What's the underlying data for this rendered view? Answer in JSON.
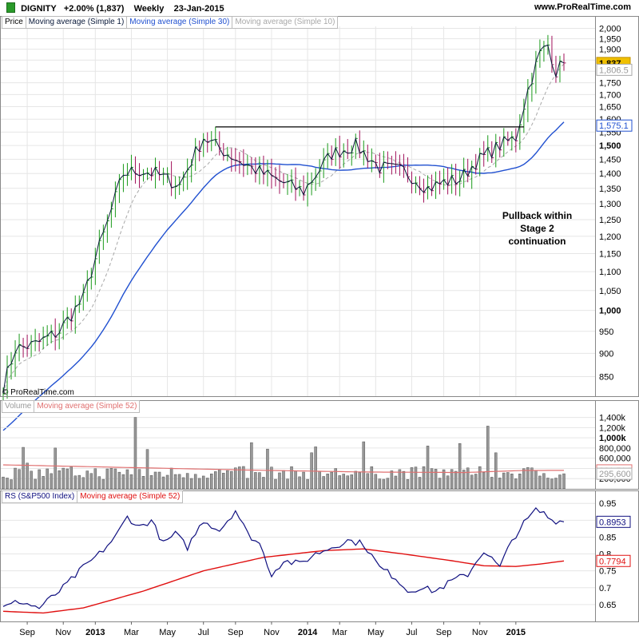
{
  "header": {
    "symbol": "DIGNITY",
    "change": "+2.00% (1,837)",
    "period": "Weekly",
    "date": "23-Jan-2015",
    "source": "www.ProRealTime.com"
  },
  "copyright": "© ProRealTime.com",
  "annotation": [
    "Pullback within",
    "Stage 2",
    "continuation"
  ],
  "price_legend": [
    "Price",
    "Moving average (Simple 1)",
    "Moving average (Simple 30)",
    "Moving average (Simple 10)"
  ],
  "volume_legend": [
    "Volume",
    "Moving average (Simple 52)"
  ],
  "rs_legend": [
    "RS (S&P500 Index)",
    "Moving average (Simple 52)"
  ],
  "colors": {
    "up": "#1a9a1a",
    "down": "#a0105a",
    "ma1": "#0a1a3a",
    "ma30": "#2050d0",
    "ma10": "#a8a8a8",
    "rs": "#101080",
    "rs_ma": "#e01010",
    "vol_ma": "#e07070",
    "grid": "#e6e6e6",
    "badge_price": "#f0c000"
  },
  "chart_data": [
    {
      "type": "candlestick",
      "title": "Price",
      "ylim": [
        810,
        2010
      ],
      "log_scale": true,
      "y_ticks": [
        "850",
        "900",
        "950",
        "1,000",
        "1,050",
        "1,100",
        "1,150",
        "1,200",
        "1,250",
        "1,300",
        "1,350",
        "1,400",
        "1,450",
        "1,500",
        "1,550",
        "1,600",
        "1,650",
        "1,700",
        "1,750",
        "1,800",
        "1,850",
        "1,900",
        "1,950",
        "2,000"
      ],
      "y_ticks_bold": [
        "1,000",
        "1,500"
      ],
      "x_ticks": [
        "Sep",
        "Nov",
        "2013",
        "Mar",
        "May",
        "Jul",
        "Sep",
        "Nov",
        "2014",
        "Mar",
        "May",
        "Jul",
        "Sep",
        "Nov",
        "2015"
      ],
      "x_ticks_bold": [
        "2013",
        "2014",
        "2015"
      ],
      "close_anchors": [
        [
          0,
          830
        ],
        [
          3,
          910
        ],
        [
          8,
          920
        ],
        [
          14,
          950
        ],
        [
          20,
          1030
        ],
        [
          26,
          1240
        ],
        [
          30,
          1400
        ],
        [
          34,
          1410
        ],
        [
          38,
          1400
        ],
        [
          44,
          1360
        ],
        [
          50,
          1530
        ],
        [
          56,
          1470
        ],
        [
          62,
          1420
        ],
        [
          68,
          1380
        ],
        [
          75,
          1340
        ],
        [
          82,
          1470
        ],
        [
          88,
          1500
        ],
        [
          94,
          1420
        ],
        [
          100,
          1410
        ],
        [
          106,
          1350
        ],
        [
          110,
          1370
        ],
        [
          114,
          1380
        ],
        [
          118,
          1440
        ],
        [
          124,
          1500
        ],
        [
          128,
          1530
        ],
        [
          131,
          1720
        ],
        [
          134,
          1880
        ],
        [
          136,
          1920
        ],
        [
          138,
          1800
        ],
        [
          140,
          1837
        ]
      ],
      "price_labels": [
        {
          "text": "1,837",
          "value": 1837,
          "style": "badge"
        },
        {
          "text": "1,806.5",
          "value": 1806.5,
          "style": "gray"
        },
        {
          "text": "1,575.1",
          "value": 1575.1,
          "style": "blue"
        }
      ],
      "resistance": {
        "value": 1570,
        "from_week": 53,
        "to_week": 130
      },
      "ma_periods": [
        1,
        30,
        10
      ]
    },
    {
      "type": "bar",
      "title": "Volume",
      "ylim": [
        0,
        1550000
      ],
      "y_ticks": [
        "200,000",
        "400,000",
        "600,000",
        "800,000",
        "1,000k",
        "1,200k",
        "1,400k"
      ],
      "y_ticks_bold": [
        "1,000k"
      ],
      "value_labels": [
        {
          "text": "361,514",
          "value": 361514
        },
        {
          "text": "295,600",
          "value": 295600
        }
      ],
      "ma_period": 52
    },
    {
      "type": "line",
      "title": "RS (S&P500 Index)",
      "ylim": [
        0.6,
        0.96
      ],
      "y_ticks": [
        "0.65",
        "0.7",
        "0.75",
        "0.8",
        "0.85",
        "0.9",
        "0.95"
      ],
      "rs_anchors": [
        [
          0,
          0.64
        ],
        [
          4,
          0.66
        ],
        [
          9,
          0.64
        ],
        [
          15,
          0.7
        ],
        [
          20,
          0.76
        ],
        [
          24,
          0.8
        ],
        [
          28,
          0.85
        ],
        [
          31,
          0.91
        ],
        [
          34,
          0.88
        ],
        [
          37,
          0.9
        ],
        [
          40,
          0.83
        ],
        [
          43,
          0.86
        ],
        [
          46,
          0.82
        ],
        [
          50,
          0.9
        ],
        [
          54,
          0.87
        ],
        [
          58,
          0.93
        ],
        [
          61,
          0.86
        ],
        [
          64,
          0.83
        ],
        [
          67,
          0.74
        ],
        [
          70,
          0.78
        ],
        [
          74,
          0.77
        ],
        [
          78,
          0.8
        ],
        [
          82,
          0.82
        ],
        [
          86,
          0.84
        ],
        [
          90,
          0.83
        ],
        [
          94,
          0.76
        ],
        [
          98,
          0.73
        ],
        [
          101,
          0.69
        ],
        [
          104,
          0.7
        ],
        [
          108,
          0.69
        ],
        [
          112,
          0.72
        ],
        [
          116,
          0.74
        ],
        [
          120,
          0.81
        ],
        [
          124,
          0.76
        ],
        [
          127,
          0.84
        ],
        [
          130,
          0.89
        ],
        [
          133,
          0.93
        ],
        [
          135,
          0.92
        ],
        [
          137,
          0.9
        ],
        [
          140,
          0.8953
        ]
      ],
      "value_labels": [
        {
          "text": "0.8953",
          "value": 0.8953
        },
        {
          "text": "0.7794",
          "value": 0.7794
        }
      ],
      "ma_period": 52
    }
  ]
}
